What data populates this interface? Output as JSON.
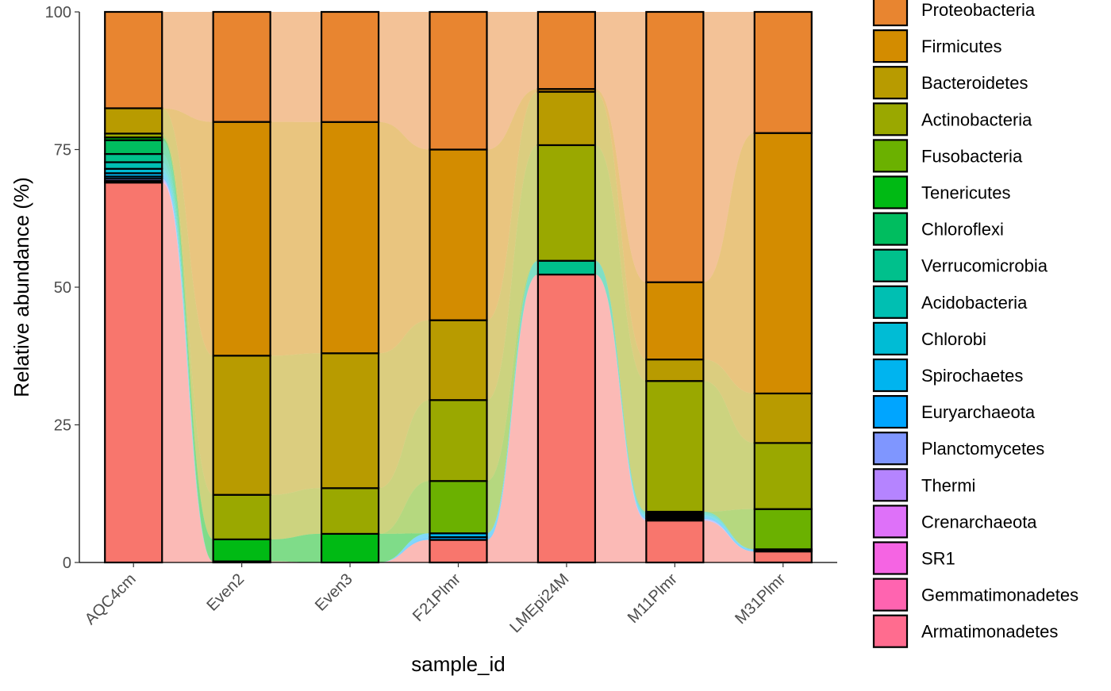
{
  "chart_data": {
    "type": "bar",
    "stacked": true,
    "alluvial": true,
    "xlabel": "sample_id",
    "ylabel": "Relative abundance (%)",
    "ylim": [
      0,
      100
    ],
    "yticks": [
      0,
      25,
      50,
      75,
      100
    ],
    "grid": false,
    "legend_position": "right",
    "categories": [
      "AQC4cm",
      "Even2",
      "Even3",
      "F21Plmr",
      "LMEpi24M",
      "M11Plmr",
      "M31Plmr"
    ],
    "series": [
      {
        "name": "Proteobacteria",
        "color": "#E88530",
        "values": [
          17.5,
          20.0,
          20.0,
          25.0,
          14.0,
          49.0,
          22.0
        ]
      },
      {
        "name": "Firmicutes",
        "color": "#D38C00",
        "values": [
          0.0,
          42.5,
          42.0,
          31.0,
          0.5,
          14.0,
          47.3
        ]
      },
      {
        "name": "Bacteroidetes",
        "color": "#B89B00",
        "values": [
          4.6,
          25.3,
          24.5,
          14.5,
          9.7,
          3.9,
          9.0
        ]
      },
      {
        "name": "Actinobacteria",
        "color": "#9AA800",
        "values": [
          0.7,
          8.1,
          8.3,
          14.7,
          21.0,
          23.7,
          12.0
        ]
      },
      {
        "name": "Fusobacteria",
        "color": "#6BB100",
        "values": [
          0.0,
          0.0,
          0.0,
          9.5,
          0.0,
          0.0,
          7.3
        ]
      },
      {
        "name": "Tenericutes",
        "color": "#00BA14",
        "values": [
          0.5,
          4.0,
          5.2,
          0.0,
          0.0,
          0.0,
          0.0
        ]
      },
      {
        "name": "Chloroflexi",
        "color": "#00BD5F",
        "values": [
          2.5,
          0.0,
          0.0,
          0.0,
          0.0,
          0.0,
          0.0
        ]
      },
      {
        "name": "Verrucomicrobia",
        "color": "#00C08C",
        "values": [
          1.5,
          0.0,
          0.0,
          0.0,
          2.5,
          0.3,
          0.0
        ]
      },
      {
        "name": "Acidobacteria",
        "color": "#00BFB2",
        "values": [
          1.2,
          0.0,
          0.0,
          0.0,
          0.0,
          0.3,
          0.0
        ]
      },
      {
        "name": "Chlorobi",
        "color": "#00BCD5",
        "values": [
          0.8,
          0.0,
          0.0,
          0.0,
          0.0,
          0.2,
          0.0
        ]
      },
      {
        "name": "Spirochaetes",
        "color": "#00B4EF",
        "values": [
          0.6,
          0.0,
          0.0,
          0.7,
          0.0,
          0.3,
          0.2
        ]
      },
      {
        "name": "Euryarchaeota",
        "color": "#00A5FF",
        "values": [
          0.4,
          0.0,
          0.0,
          0.5,
          0.0,
          0.2,
          0.2
        ]
      },
      {
        "name": "Planctomycetes",
        "color": "#7F96FF",
        "values": [
          0.4,
          0.0,
          0.0,
          0.0,
          0.0,
          0.3,
          0.0
        ]
      },
      {
        "name": "Thermi",
        "color": "#B584FF",
        "values": [
          0.2,
          0.0,
          0.0,
          0.0,
          0.0,
          0.0,
          0.0
        ]
      },
      {
        "name": "Crenarchaeota",
        "color": "#DE71F9",
        "values": [
          0.1,
          0.0,
          0.0,
          0.0,
          0.0,
          0.0,
          0.0
        ]
      },
      {
        "name": "SR1",
        "color": "#F564E3",
        "values": [
          0.0,
          0.0,
          0.0,
          0.0,
          0.0,
          0.0,
          0.0
        ]
      },
      {
        "name": "Gemmatimonadetes",
        "color": "#FF64B0",
        "values": [
          0.0,
          0.0,
          0.0,
          0.0,
          0.0,
          0.0,
          0.0
        ]
      },
      {
        "name": "Armatimonadetes",
        "color": "#F8766D",
        "values": [
          69.0,
          0.2,
          0.0,
          4.1,
          52.3,
          7.6,
          2.0
        ]
      }
    ]
  },
  "legend_swatch_colors": {
    "Armatimonadetes": "#FF6C8F"
  }
}
